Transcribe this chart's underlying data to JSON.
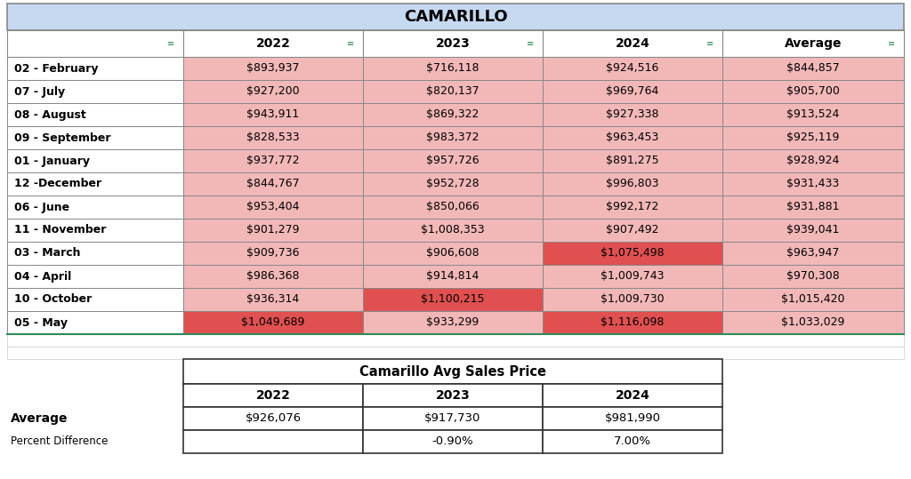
{
  "title": "CAMARILLO",
  "title_bg": "#c6d9f1",
  "header_cols": [
    "",
    "2022",
    "2023",
    "2024",
    "Average"
  ],
  "rows": [
    {
      "month": "02 - February",
      "v2022": "$893,937",
      "v2023": "$716,118",
      "v2024": "$924,516",
      "avg": "$844,857"
    },
    {
      "month": "07 - July",
      "v2022": "$927,200",
      "v2023": "$820,137",
      "v2024": "$969,764",
      "avg": "$905,700"
    },
    {
      "month": "08 - August",
      "v2022": "$943,911",
      "v2023": "$869,322",
      "v2024": "$927,338",
      "avg": "$913,524"
    },
    {
      "month": "09 - September",
      "v2022": "$828,533",
      "v2023": "$983,372",
      "v2024": "$963,453",
      "avg": "$925,119"
    },
    {
      "month": "01 - January",
      "v2022": "$937,772",
      "v2023": "$957,726",
      "v2024": "$891,275",
      "avg": "$928,924"
    },
    {
      "month": "12 -December",
      "v2022": "$844,767",
      "v2023": "$952,728",
      "v2024": "$996,803",
      "avg": "$931,433"
    },
    {
      "month": "06 - June",
      "v2022": "$953,404",
      "v2023": "$850,066",
      "v2024": "$992,172",
      "avg": "$931,881"
    },
    {
      "month": "11 - November",
      "v2022": "$901,279",
      "v2023": "$1,008,353",
      "v2024": "$907,492",
      "avg": "$939,041"
    },
    {
      "month": "03 - March",
      "v2022": "$909,736",
      "v2023": "$906,608",
      "v2024": "$1,075,498",
      "avg": "$963,947"
    },
    {
      "month": "04 - April",
      "v2022": "$986,368",
      "v2023": "$914,814",
      "v2024": "$1,009,743",
      "avg": "$970,308"
    },
    {
      "month": "10 - October",
      "v2022": "$936,314",
      "v2023": "$1,100,215",
      "v2024": "$1,009,730",
      "avg": "$1,015,420"
    },
    {
      "month": "05 - May",
      "v2022": "$1,049,689",
      "v2023": "$933,299",
      "v2024": "$1,116,098",
      "avg": "$1,033,029"
    }
  ],
  "cell_colors": [
    [
      "#f2b8b8",
      "#f2b8b8",
      "#f2b8b8",
      "#f2b8b8"
    ],
    [
      "#f2b8b8",
      "#f2b8b8",
      "#f2b8b8",
      "#f2b8b8"
    ],
    [
      "#f2b8b8",
      "#f2b8b8",
      "#f2b8b8",
      "#f2b8b8"
    ],
    [
      "#f2b8b8",
      "#f2b8b8",
      "#f2b8b8",
      "#f2b8b8"
    ],
    [
      "#f2b8b8",
      "#f2b8b8",
      "#f2b8b8",
      "#f2b8b8"
    ],
    [
      "#f2b8b8",
      "#f2b8b8",
      "#f2b8b8",
      "#f2b8b8"
    ],
    [
      "#f2b8b8",
      "#f2b8b8",
      "#f2b8b8",
      "#f2b8b8"
    ],
    [
      "#f2b8b8",
      "#f2b8b8",
      "#f2b8b8",
      "#f2b8b8"
    ],
    [
      "#f2b8b8",
      "#f2b8b8",
      "#e05050",
      "#f2b8b8"
    ],
    [
      "#f2b8b8",
      "#f2b8b8",
      "#f2b8b8",
      "#f2b8b8"
    ],
    [
      "#f2b8b8",
      "#e05050",
      "#f2b8b8",
      "#f2b8b8"
    ],
    [
      "#e05050",
      "#f2b8b8",
      "#e05050",
      "#f2b8b8"
    ]
  ],
  "summary_title": "Camarillo Avg Sales Price",
  "summary_years": [
    "2022",
    "2023",
    "2024"
  ],
  "summary_avg": [
    "$926,076",
    "$917,730",
    "$981,990"
  ],
  "summary_pct": [
    "",
    "-0.90%",
    "7.00%"
  ],
  "summary_avg_label": "Average",
  "summary_pct_label": "Percent Difference",
  "fig_width": 10.24,
  "fig_height": 5.39,
  "dpi": 100
}
